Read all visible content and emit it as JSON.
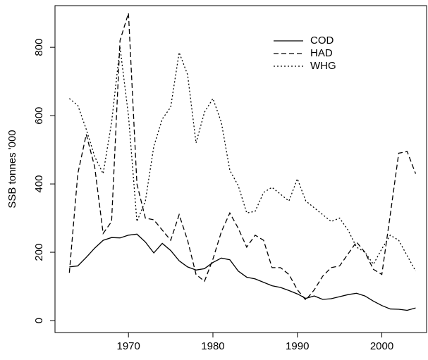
{
  "chart_data": {
    "type": "line",
    "y_label": "SSB tonnes '000",
    "x": [
      1963,
      1964,
      1965,
      1966,
      1967,
      1968,
      1969,
      1970,
      1971,
      1972,
      1973,
      1974,
      1975,
      1976,
      1977,
      1978,
      1979,
      1980,
      1981,
      1982,
      1983,
      1984,
      1985,
      1986,
      1987,
      1988,
      1989,
      1990,
      1991,
      1992,
      1993,
      1994,
      1995,
      1996,
      1997,
      1998,
      1999,
      2000,
      2001,
      2002,
      2003,
      2004
    ],
    "series": [
      {
        "name": "COD",
        "color": "#000000",
        "linestyle": "solid",
        "values": [
          157,
          160,
          185,
          212,
          235,
          243,
          242,
          250,
          253,
          230,
          198,
          226,
          205,
          175,
          157,
          148,
          152,
          170,
          183,
          178,
          145,
          127,
          122,
          112,
          102,
          97,
          88,
          78,
          65,
          72,
          62,
          64,
          70,
          76,
          80,
          72,
          57,
          44,
          34,
          33,
          30,
          37
        ]
      },
      {
        "name": "HAD",
        "color": "#000000",
        "linestyle": "dashed",
        "values": [
          140,
          430,
          545,
          450,
          255,
          290,
          820,
          900,
          400,
          300,
          295,
          265,
          235,
          310,
          235,
          135,
          115,
          180,
          260,
          315,
          270,
          215,
          250,
          235,
          155,
          155,
          135,
          90,
          60,
          90,
          130,
          155,
          160,
          195,
          230,
          200,
          150,
          135,
          310,
          490,
          495,
          430
        ]
      },
      {
        "name": "WHG",
        "color": "#000000",
        "linestyle": "dotted",
        "values": [
          650,
          630,
          560,
          480,
          430,
          580,
          800,
          600,
          290,
          350,
          510,
          590,
          625,
          785,
          720,
          520,
          610,
          650,
          580,
          440,
          395,
          315,
          320,
          375,
          390,
          370,
          350,
          415,
          350,
          330,
          310,
          290,
          300,
          265,
          215,
          200,
          165,
          210,
          250,
          235,
          190,
          145
        ]
      }
    ],
    "xlim": [
      1961.3,
      2005.3
    ],
    "xticks": [
      1970,
      1980,
      1990,
      2000
    ],
    "ylim": [
      -35,
      922
    ],
    "yticks": [
      0,
      200,
      400,
      600,
      800
    ],
    "legend": "top-right"
  }
}
